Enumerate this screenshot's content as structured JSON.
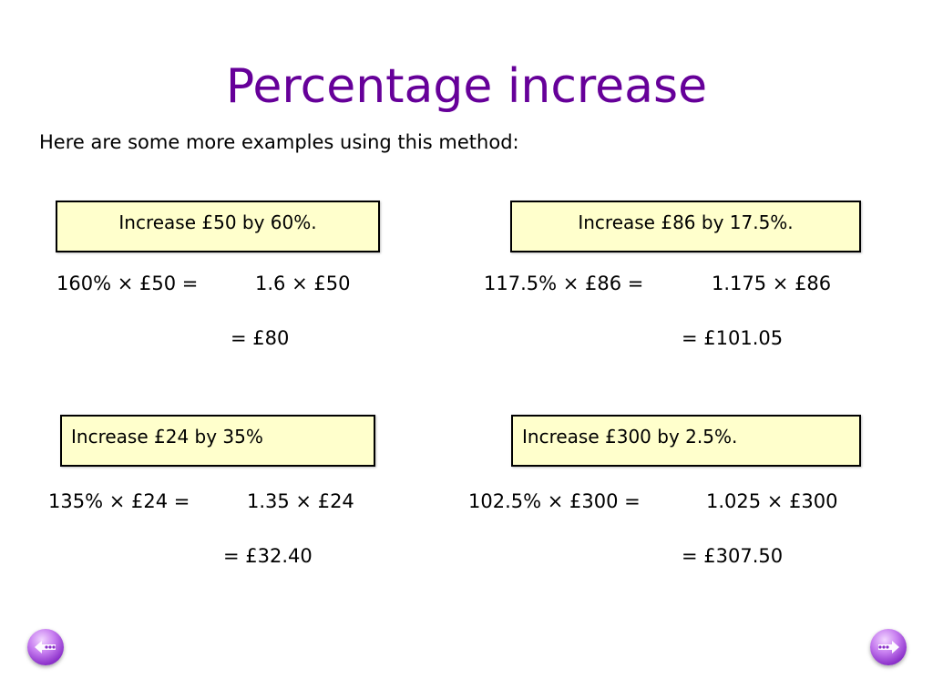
{
  "slide": {
    "title": "Percentage increase",
    "intro": "Here are some more examples using this method:"
  },
  "examples": [
    {
      "prompt": "Increase £50 by 60%.",
      "step1": "160% × £50 =",
      "step2": "1.6 × £50",
      "result": "= £80"
    },
    {
      "prompt": "Increase £86 by 17.5%.",
      "step1": "117.5% × £86 =",
      "step2": "1.175 × £86",
      "result": "= £101.05"
    },
    {
      "prompt": "Increase £24 by 35%",
      "step1": "135% × £24 =",
      "step2": "1.35 × £24",
      "result": "= £32.40"
    },
    {
      "prompt": "Increase £300 by 2.5%.",
      "step1": "102.5% × £300 =",
      "step2": "1.025 × £300",
      "result": "= £307.50"
    }
  ],
  "navigation": {
    "prev_icon": "back-arrow-icon",
    "next_icon": "forward-arrow-icon"
  },
  "colors": {
    "title": "#660099",
    "box_fill": "#ffffcc",
    "nav_button": "#8a2fc9"
  }
}
